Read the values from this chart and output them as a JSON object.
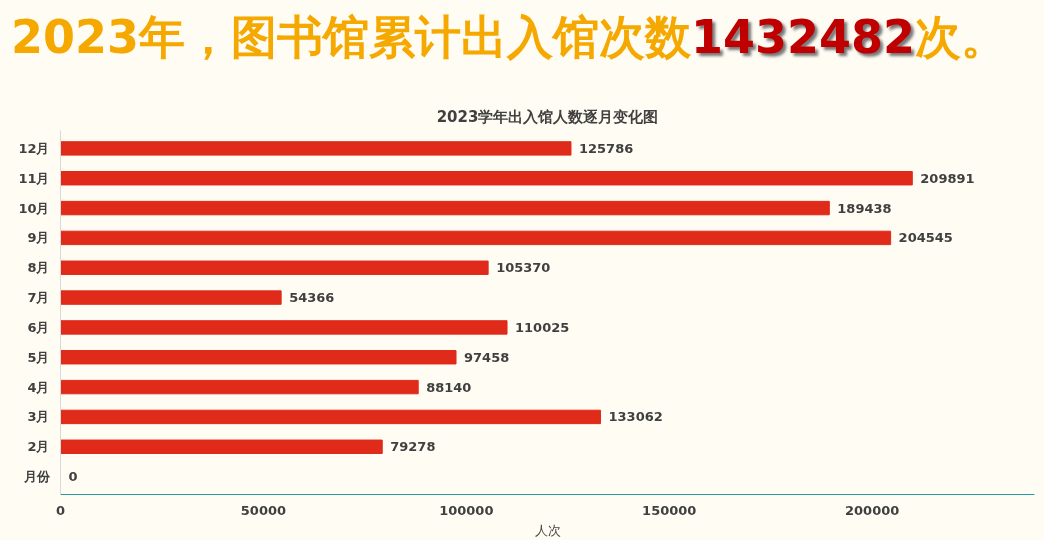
{
  "chart_data": {
    "type": "bar",
    "orientation": "horizontal",
    "title": "2023年，图书馆累计出入馆次数1432482次。",
    "subtitle": "2023学年出入馆人数逐月变化图",
    "xlabel": "人次",
    "categories": [
      "12月",
      "11月",
      "10月",
      "9月",
      "8月",
      "7月",
      "6月",
      "5月",
      "4月",
      "3月",
      "2月",
      "月份"
    ],
    "values": [
      125786,
      209891,
      189438,
      204545,
      105370,
      54366,
      110025,
      97458,
      88140,
      133062,
      79278,
      0
    ],
    "color": "#e02a1a",
    "data_labels": true,
    "xlim": [
      0,
      240000
    ],
    "xticks": [
      0,
      50000,
      100000,
      150000,
      200000
    ]
  }
}
